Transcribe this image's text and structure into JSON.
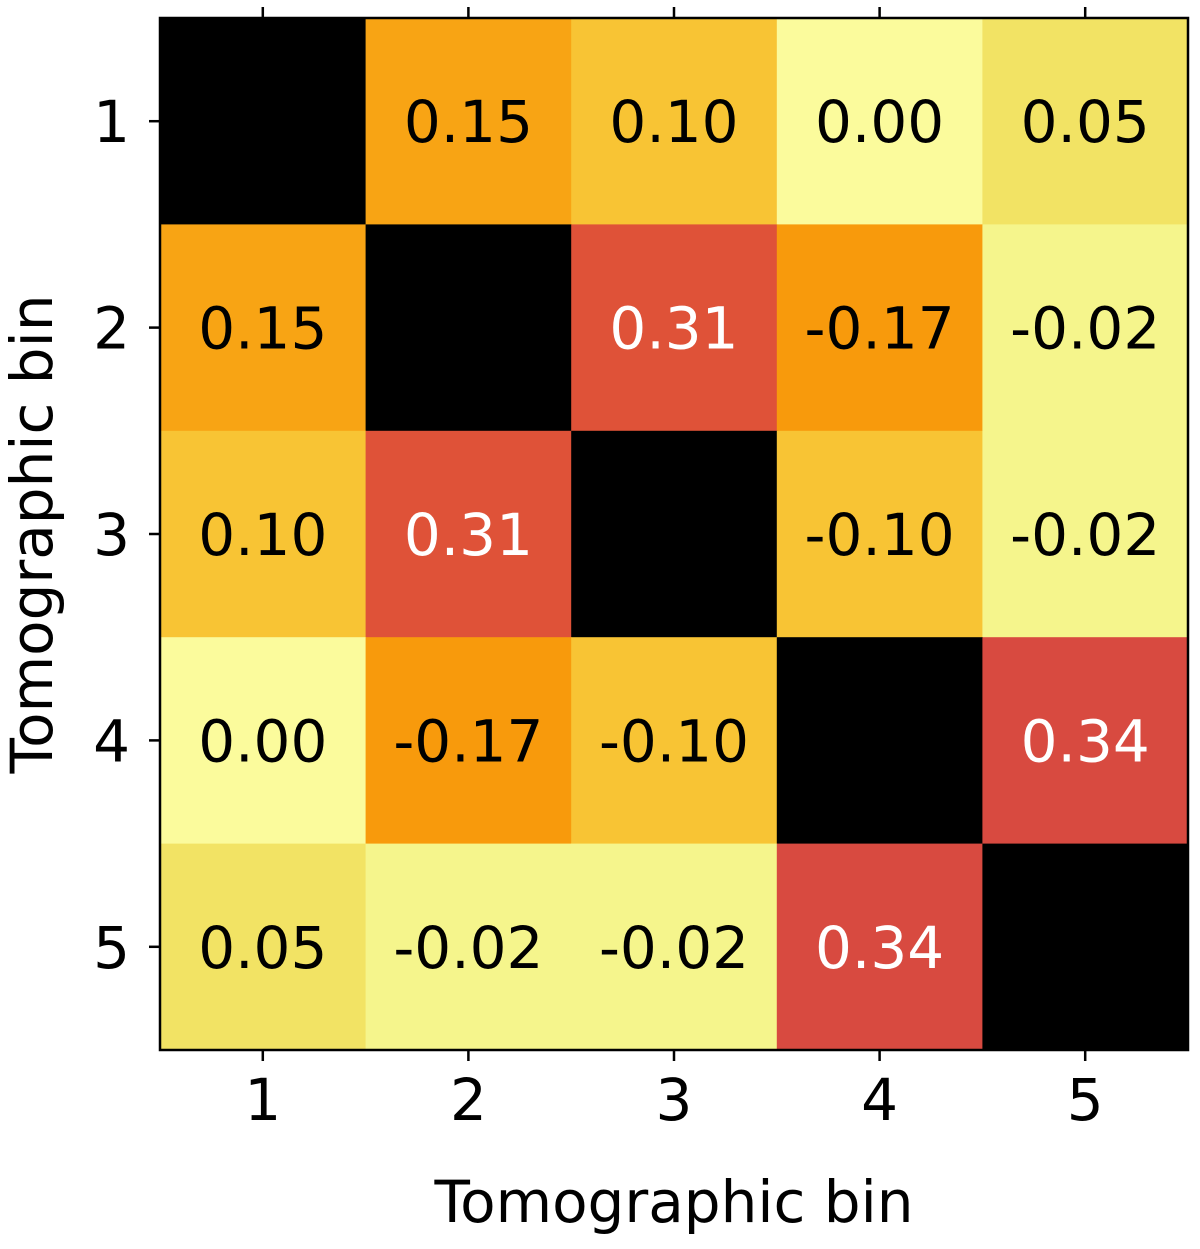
{
  "chart_data": {
    "type": "heatmap",
    "xlabel": "Tomographic bin",
    "ylabel": "Tomographic bin",
    "x_categories": [
      "1",
      "2",
      "3",
      "4",
      "5"
    ],
    "y_categories": [
      "1",
      "2",
      "3",
      "4",
      "5"
    ],
    "values": [
      [
        null,
        0.15,
        0.1,
        0.0,
        0.05
      ],
      [
        0.15,
        null,
        0.31,
        -0.17,
        -0.02
      ],
      [
        0.1,
        0.31,
        null,
        -0.1,
        -0.02
      ],
      [
        0.0,
        -0.17,
        -0.1,
        null,
        0.34
      ],
      [
        0.05,
        -0.02,
        -0.02,
        0.34,
        null
      ]
    ],
    "cell_labels": [
      [
        "",
        "0.15",
        "0.10",
        "0.00",
        "0.05"
      ],
      [
        "0.15",
        "",
        "0.31",
        "-0.17",
        "-0.02"
      ],
      [
        "0.10",
        "0.31",
        "",
        "-0.10",
        "-0.02"
      ],
      [
        "0.00",
        "-0.17",
        "-0.10",
        "",
        "0.34"
      ],
      [
        "0.05",
        "-0.02",
        "-0.02",
        "0.34",
        ""
      ]
    ],
    "cell_colors": [
      [
        "#000000",
        "#f8a414",
        "#f8c434",
        "#fbfb9c",
        "#f2e364"
      ],
      [
        "#f8a414",
        "#000000",
        "#df5238",
        "#f89a0c",
        "#f5f58c"
      ],
      [
        "#f8c434",
        "#df5238",
        "#000000",
        "#f8c434",
        "#f5f58c"
      ],
      [
        "#fbfb9c",
        "#f89a0c",
        "#f8c434",
        "#000000",
        "#d84a40"
      ],
      [
        "#f2e364",
        "#f5f58c",
        "#f5f58c",
        "#d84a40",
        "#000000"
      ]
    ],
    "label_colors": [
      [
        "#000000",
        "#000000",
        "#000000",
        "#000000",
        "#000000"
      ],
      [
        "#000000",
        "#000000",
        "#ffffff",
        "#000000",
        "#000000"
      ],
      [
        "#000000",
        "#ffffff",
        "#000000",
        "#000000",
        "#000000"
      ],
      [
        "#000000",
        "#000000",
        "#000000",
        "#000000",
        "#ffffff"
      ],
      [
        "#000000",
        "#000000",
        "#000000",
        "#ffffff",
        "#000000"
      ]
    ],
    "diagonal_color": "#000000"
  }
}
